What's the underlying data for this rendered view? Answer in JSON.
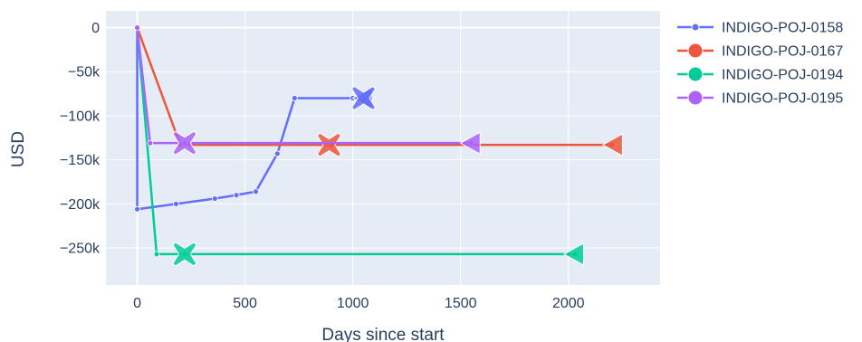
{
  "chart_data": {
    "type": "line",
    "title": "",
    "xlabel": "Days since start",
    "ylabel": "USD",
    "xlim": [
      -145,
      2425
    ],
    "ylim": [
      -292000,
      19000
    ],
    "x_ticks": [
      {
        "value": 0,
        "label": "0"
      },
      {
        "value": 500,
        "label": "500"
      },
      {
        "value": 1000,
        "label": "1000"
      },
      {
        "value": 1500,
        "label": "1500"
      },
      {
        "value": 2000,
        "label": "2000"
      }
    ],
    "y_ticks": [
      {
        "value": 0,
        "label": "0"
      },
      {
        "value": -50000,
        "label": "−50k"
      },
      {
        "value": -100000,
        "label": "−100k"
      },
      {
        "value": -150000,
        "label": "−150k"
      },
      {
        "value": -200000,
        "label": "−200k"
      },
      {
        "value": -250000,
        "label": "−250k"
      }
    ],
    "grid": true,
    "legend_position": "right",
    "series": [
      {
        "name": "INDIGO-POJ-0158",
        "color": "#636efa",
        "x": [
          0,
          0,
          180,
          360,
          460,
          550,
          650,
          730,
          1000,
          1050
        ],
        "y": [
          0,
          -206000,
          -200000,
          -194000,
          -190000,
          -186000,
          -143000,
          -80000,
          -80000,
          -80000
        ],
        "x_marker": {
          "x": 1050,
          "y": -80000
        },
        "end_marker": {
          "x": 1050,
          "y": -80000
        }
      },
      {
        "name": "INDIGO-POJ-0167",
        "color": "#ef553b",
        "x": [
          0,
          200,
          900,
          2200
        ],
        "y": [
          0,
          -133000,
          -133000,
          -133000
        ],
        "x_marker": {
          "x": 890,
          "y": -133000
        },
        "end_marker": {
          "x": 2210,
          "y": -133000
        }
      },
      {
        "name": "INDIGO-POJ-0194",
        "color": "#00cc96",
        "x": [
          0,
          90,
          220,
          2030
        ],
        "y": [
          0,
          -257000,
          -257000,
          -257000
        ],
        "x_marker": {
          "x": 220,
          "y": -257000
        },
        "end_marker": {
          "x": 2030,
          "y": -257000
        }
      },
      {
        "name": "INDIGO-POJ-0195",
        "color": "#ab63fa",
        "x": [
          0,
          60,
          220,
          1550
        ],
        "y": [
          0,
          -131000,
          -131000,
          -131000
        ],
        "x_marker": {
          "x": 220,
          "y": -131000
        },
        "end_marker": {
          "x": 1550,
          "y": -131000
        }
      }
    ]
  }
}
